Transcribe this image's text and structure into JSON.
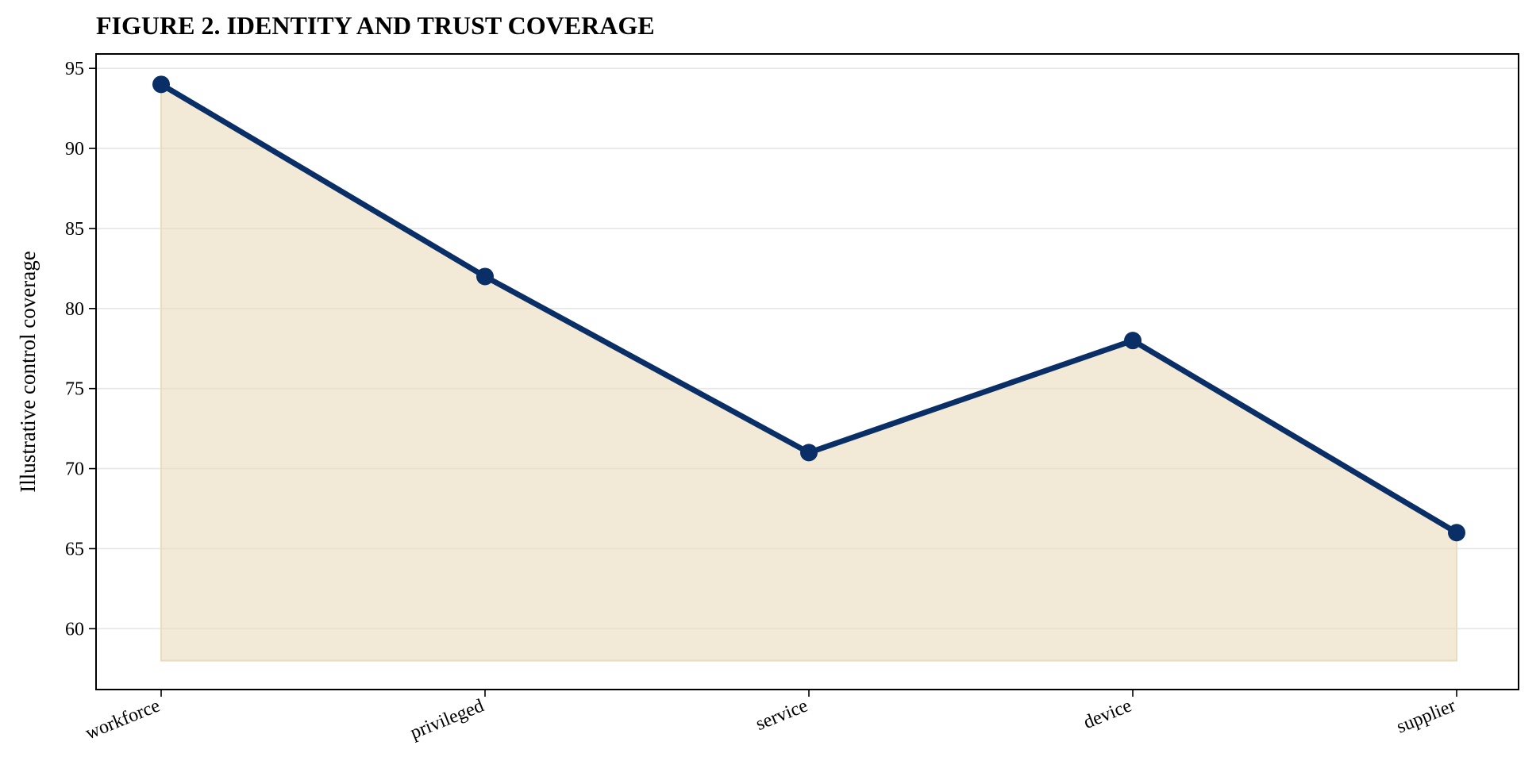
{
  "chart_data": {
    "type": "area",
    "title": "FIGURE 2. IDENTITY AND TRUST COVERAGE",
    "xlabel": "",
    "ylabel": "Illustrative control coverage",
    "categories": [
      "workforce",
      "privileged",
      "service",
      "device",
      "supplier"
    ],
    "series": [
      {
        "values": [
          94,
          82,
          71,
          78,
          66
        ]
      }
    ],
    "fill_baseline": 58,
    "ylim": [
      56.2,
      95.9
    ],
    "yticks": [
      60,
      65,
      70,
      75,
      80,
      85,
      90,
      95
    ],
    "grid": "horizontal",
    "legend": "none",
    "colors": {
      "line": "#0a2e66",
      "fill": "#e9dcbc",
      "grid": "#e6e6e6"
    }
  }
}
